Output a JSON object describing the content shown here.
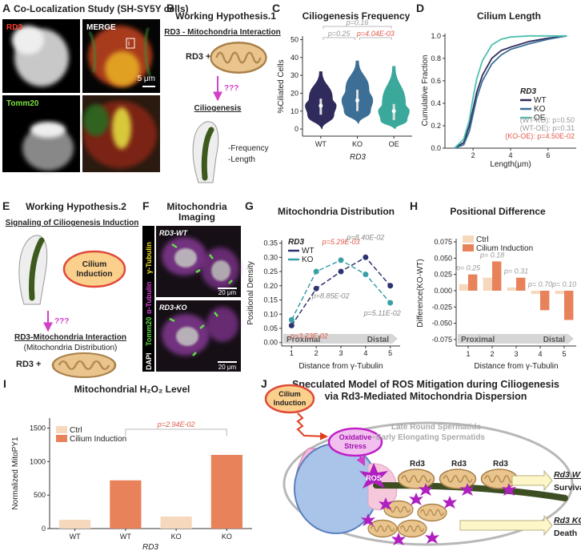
{
  "panels": {
    "A": {
      "label": "A",
      "title": "Co-Localization Study (SH-SY5Y cells)",
      "channels": [
        "RD3",
        "MERGE",
        "Tomm20"
      ],
      "inset_label": "i",
      "scale_bar": "5 μm"
    },
    "B": {
      "label": "B",
      "title": "Working Hypothesis.1",
      "heading": "RD3 - Mitochondria Interaction",
      "factor": "RD3 +",
      "question": "???",
      "outcome": "Ciliogenesis",
      "measures": [
        "-Frequency",
        "-Length"
      ]
    },
    "E": {
      "label": "E",
      "title": "Working Hypothesis.2",
      "heading": "Signaling of Ciliogenesis Induction",
      "induction": [
        "Cilium",
        "Induction"
      ],
      "question": "???",
      "outcome": "RD3-Mitochondria Interaction",
      "outcome_note": "(Mitochondria Distribution)",
      "factor": "RD3 +"
    },
    "F": {
      "label": "F",
      "title": [
        "Mitochondria",
        "Imaging"
      ],
      "stains": [
        "DAPI",
        "Tomm20",
        "α-Tubulin",
        "γ-Tubulin"
      ],
      "genotypes": [
        "RD3-WT",
        "RD3-KO"
      ],
      "scale_bars": [
        "20 μm",
        "20 μm"
      ]
    },
    "J": {
      "label": "J",
      "title": [
        "Speculated Model of ROS Mitigation during Ciliogenesis",
        "via Rd3-Mediated Mitochondria Dispersion"
      ],
      "induction": [
        "Cilium",
        "Induction"
      ],
      "stress": [
        "Oxidative",
        "Stress"
      ],
      "stage": [
        "Late Round Spermatids",
        "~Early Elongating Spermatids"
      ],
      "ros": "ROS",
      "protein": [
        "Rd3",
        "Rd3",
        "Rd3"
      ],
      "outcomes": [
        {
          "genotype": "Rd3 WT",
          "fate": "Survival"
        },
        {
          "genotype": "Rd3 KO",
          "fate": "Death"
        }
      ]
    }
  },
  "chart_data": [
    {
      "type": "violin",
      "label": "C",
      "title": "Ciliogenesis Frequency",
      "xlabel": "RD3",
      "ylabel": "%Ciliated Cells",
      "categories": [
        "WT",
        "KO",
        "OE"
      ],
      "colors": [
        "#2f2b5c",
        "#3d6f96",
        "#3aa89a"
      ],
      "boxes": [
        {
          "min": 0,
          "q1": 8,
          "median": 13,
          "q3": 17,
          "max": 32
        },
        {
          "min": 3,
          "q1": 10,
          "median": 16,
          "q3": 22,
          "max": 38
        },
        {
          "min": 0,
          "q1": 5,
          "median": 10,
          "q3": 14,
          "max": 35
        }
      ],
      "ylim": [
        -4,
        52
      ],
      "yticks": [
        0,
        10,
        20,
        30,
        40,
        50
      ],
      "annotations": [
        {
          "text": "p=0.16",
          "color": "#999999"
        },
        {
          "text": "p=0.25",
          "color": "#999999"
        },
        {
          "text": "p=4.04E-03",
          "color": "#e05a4a"
        }
      ]
    },
    {
      "type": "line",
      "label": "D",
      "title": "Cilium Length",
      "xlabel": "Length(μm)",
      "ylabel": "Cumulative Fraction",
      "legend_title": "RD3",
      "legend": "right",
      "x": [
        1,
        1.5,
        1.8,
        2,
        2.2,
        2.5,
        3,
        3.5,
        4,
        5,
        6,
        7
      ],
      "series": [
        {
          "name": "WT",
          "color": "#2f2b5c",
          "values": [
            0,
            0.05,
            0.2,
            0.35,
            0.5,
            0.65,
            0.8,
            0.87,
            0.9,
            0.95,
            0.98,
            1.0
          ]
        },
        {
          "name": "KO",
          "color": "#3d6f96",
          "values": [
            0,
            0.03,
            0.15,
            0.3,
            0.45,
            0.6,
            0.75,
            0.83,
            0.88,
            0.93,
            0.97,
            1.0
          ]
        },
        {
          "name": "OE",
          "color": "#4fc0b0",
          "values": [
            0,
            0.08,
            0.25,
            0.45,
            0.62,
            0.78,
            0.92,
            0.97,
            0.99,
            1.0,
            1.0,
            1.0
          ]
        }
      ],
      "xlim": [
        0.5,
        7.5
      ],
      "xticks": [
        2,
        4,
        6
      ],
      "ylim": [
        0,
        1.02
      ],
      "yticks": [
        {
          "value": 0,
          "label": "0.0"
        },
        0.2,
        0.4,
        0.6,
        0.8,
        {
          "value": 1,
          "label": "1.0"
        }
      ],
      "annotations": [
        {
          "text": "(WT-KO): p=0.50",
          "color": "#999999"
        },
        {
          "text": "(WT-OE): p=0.31",
          "color": "#999999"
        },
        {
          "text": "(KO-OE): p=4.50E-02",
          "color": "#e05a4a"
        }
      ]
    },
    {
      "type": "scatter",
      "label": "G",
      "title": "Mitochondria Distribution",
      "xlabel": "Distance from γ-Tubulin",
      "ylabel": "Positional Density",
      "legend_title": "RD3",
      "legend": "upper left",
      "x": [
        1,
        2,
        3,
        4,
        5
      ],
      "series": [
        {
          "name": "WT",
          "color": "#2d3470",
          "values": [
            0.06,
            0.19,
            0.25,
            0.3,
            0.2
          ]
        },
        {
          "name": "KO",
          "color": "#3aa0a8",
          "values": [
            0.08,
            0.25,
            0.29,
            0.24,
            0.14
          ]
        }
      ],
      "xlim": [
        0.6,
        5.4
      ],
      "xticks": [
        1,
        2,
        3,
        4,
        5
      ],
      "ylim": [
        -0.012,
        0.36
      ],
      "yticks": [
        {
          "value": 0,
          "label": "0.00"
        },
        0.05,
        {
          "value": 0.1,
          "label": "0.10"
        },
        0.15,
        {
          "value": 0.2,
          "label": "0.20"
        },
        0.25,
        {
          "value": 0.3,
          "label": "0.30"
        },
        0.35
      ],
      "region_labels": [
        "Proximal",
        "Distal"
      ],
      "annotations": [
        {
          "text": "p=3.23E-02",
          "color": "#e05a4a"
        },
        {
          "text": "p=8.85E-02",
          "color": "#888888"
        },
        {
          "text": "p=5.29E-03",
          "color": "#e05a4a"
        },
        {
          "text": "p=8.40E-02",
          "color": "#888888"
        },
        {
          "text": "p=5.11E-02",
          "color": "#888888"
        }
      ]
    },
    {
      "type": "bar",
      "label": "H",
      "title": "Positional Difference",
      "xlabel": "Distance from γ-Tubulin",
      "ylabel": "Difference(KO-WT)",
      "legend": "upper left",
      "categories": [
        "1",
        "2",
        "3",
        "4",
        "5"
      ],
      "series": [
        {
          "name": "Ctrl",
          "color": "#f6d8bc",
          "values": [
            0.01,
            0.02,
            0.005,
            -0.005,
            -0.005
          ]
        },
        {
          "name": "Cilium Induction",
          "color": "#e8825a",
          "values": [
            0.025,
            0.045,
            0.02,
            -0.03,
            -0.045
          ]
        }
      ],
      "ylim": [
        -0.085,
        0.08
      ],
      "yticks": [
        -0.075,
        {
          "value": -0.05,
          "label": "-0.050"
        },
        -0.025,
        {
          "value": 0,
          "label": "0.000"
        },
        0.025,
        {
          "value": 0.05,
          "label": "0.050"
        },
        0.075
      ],
      "region_labels": [
        "Proximal",
        "Distal"
      ],
      "annotations": [
        {
          "text": "p= 0.25",
          "color": "#999999"
        },
        {
          "text": "p= 0.18",
          "color": "#999999"
        },
        {
          "text": "p= 0.31",
          "color": "#999999"
        },
        {
          "text": "p= 0.70",
          "color": "#999999"
        },
        {
          "text": "p= 0.10",
          "color": "#999999"
        }
      ]
    },
    {
      "type": "bar",
      "label": "I",
      "title": "Mitochondrial H₂O₂ Level",
      "xlabel": "RD3",
      "ylabel": "Normalized MitoPY1",
      "legend": "upper left",
      "categories": [
        "WT",
        "WT",
        "KO",
        "KO"
      ],
      "series": [
        {
          "name": "Ctrl",
          "color": "#f6d8bc",
          "values": [
            130,
            null,
            180,
            null
          ]
        },
        {
          "name": "Cilium Induction",
          "color": "#e8825a",
          "values": [
            null,
            720,
            null,
            1100
          ]
        }
      ],
      "ylim": [
        0,
        1650
      ],
      "yticks": [
        0,
        500,
        1000,
        1500
      ],
      "annotations": [
        {
          "text": "p=2.94E-02",
          "color": "#e05a4a"
        }
      ]
    }
  ]
}
